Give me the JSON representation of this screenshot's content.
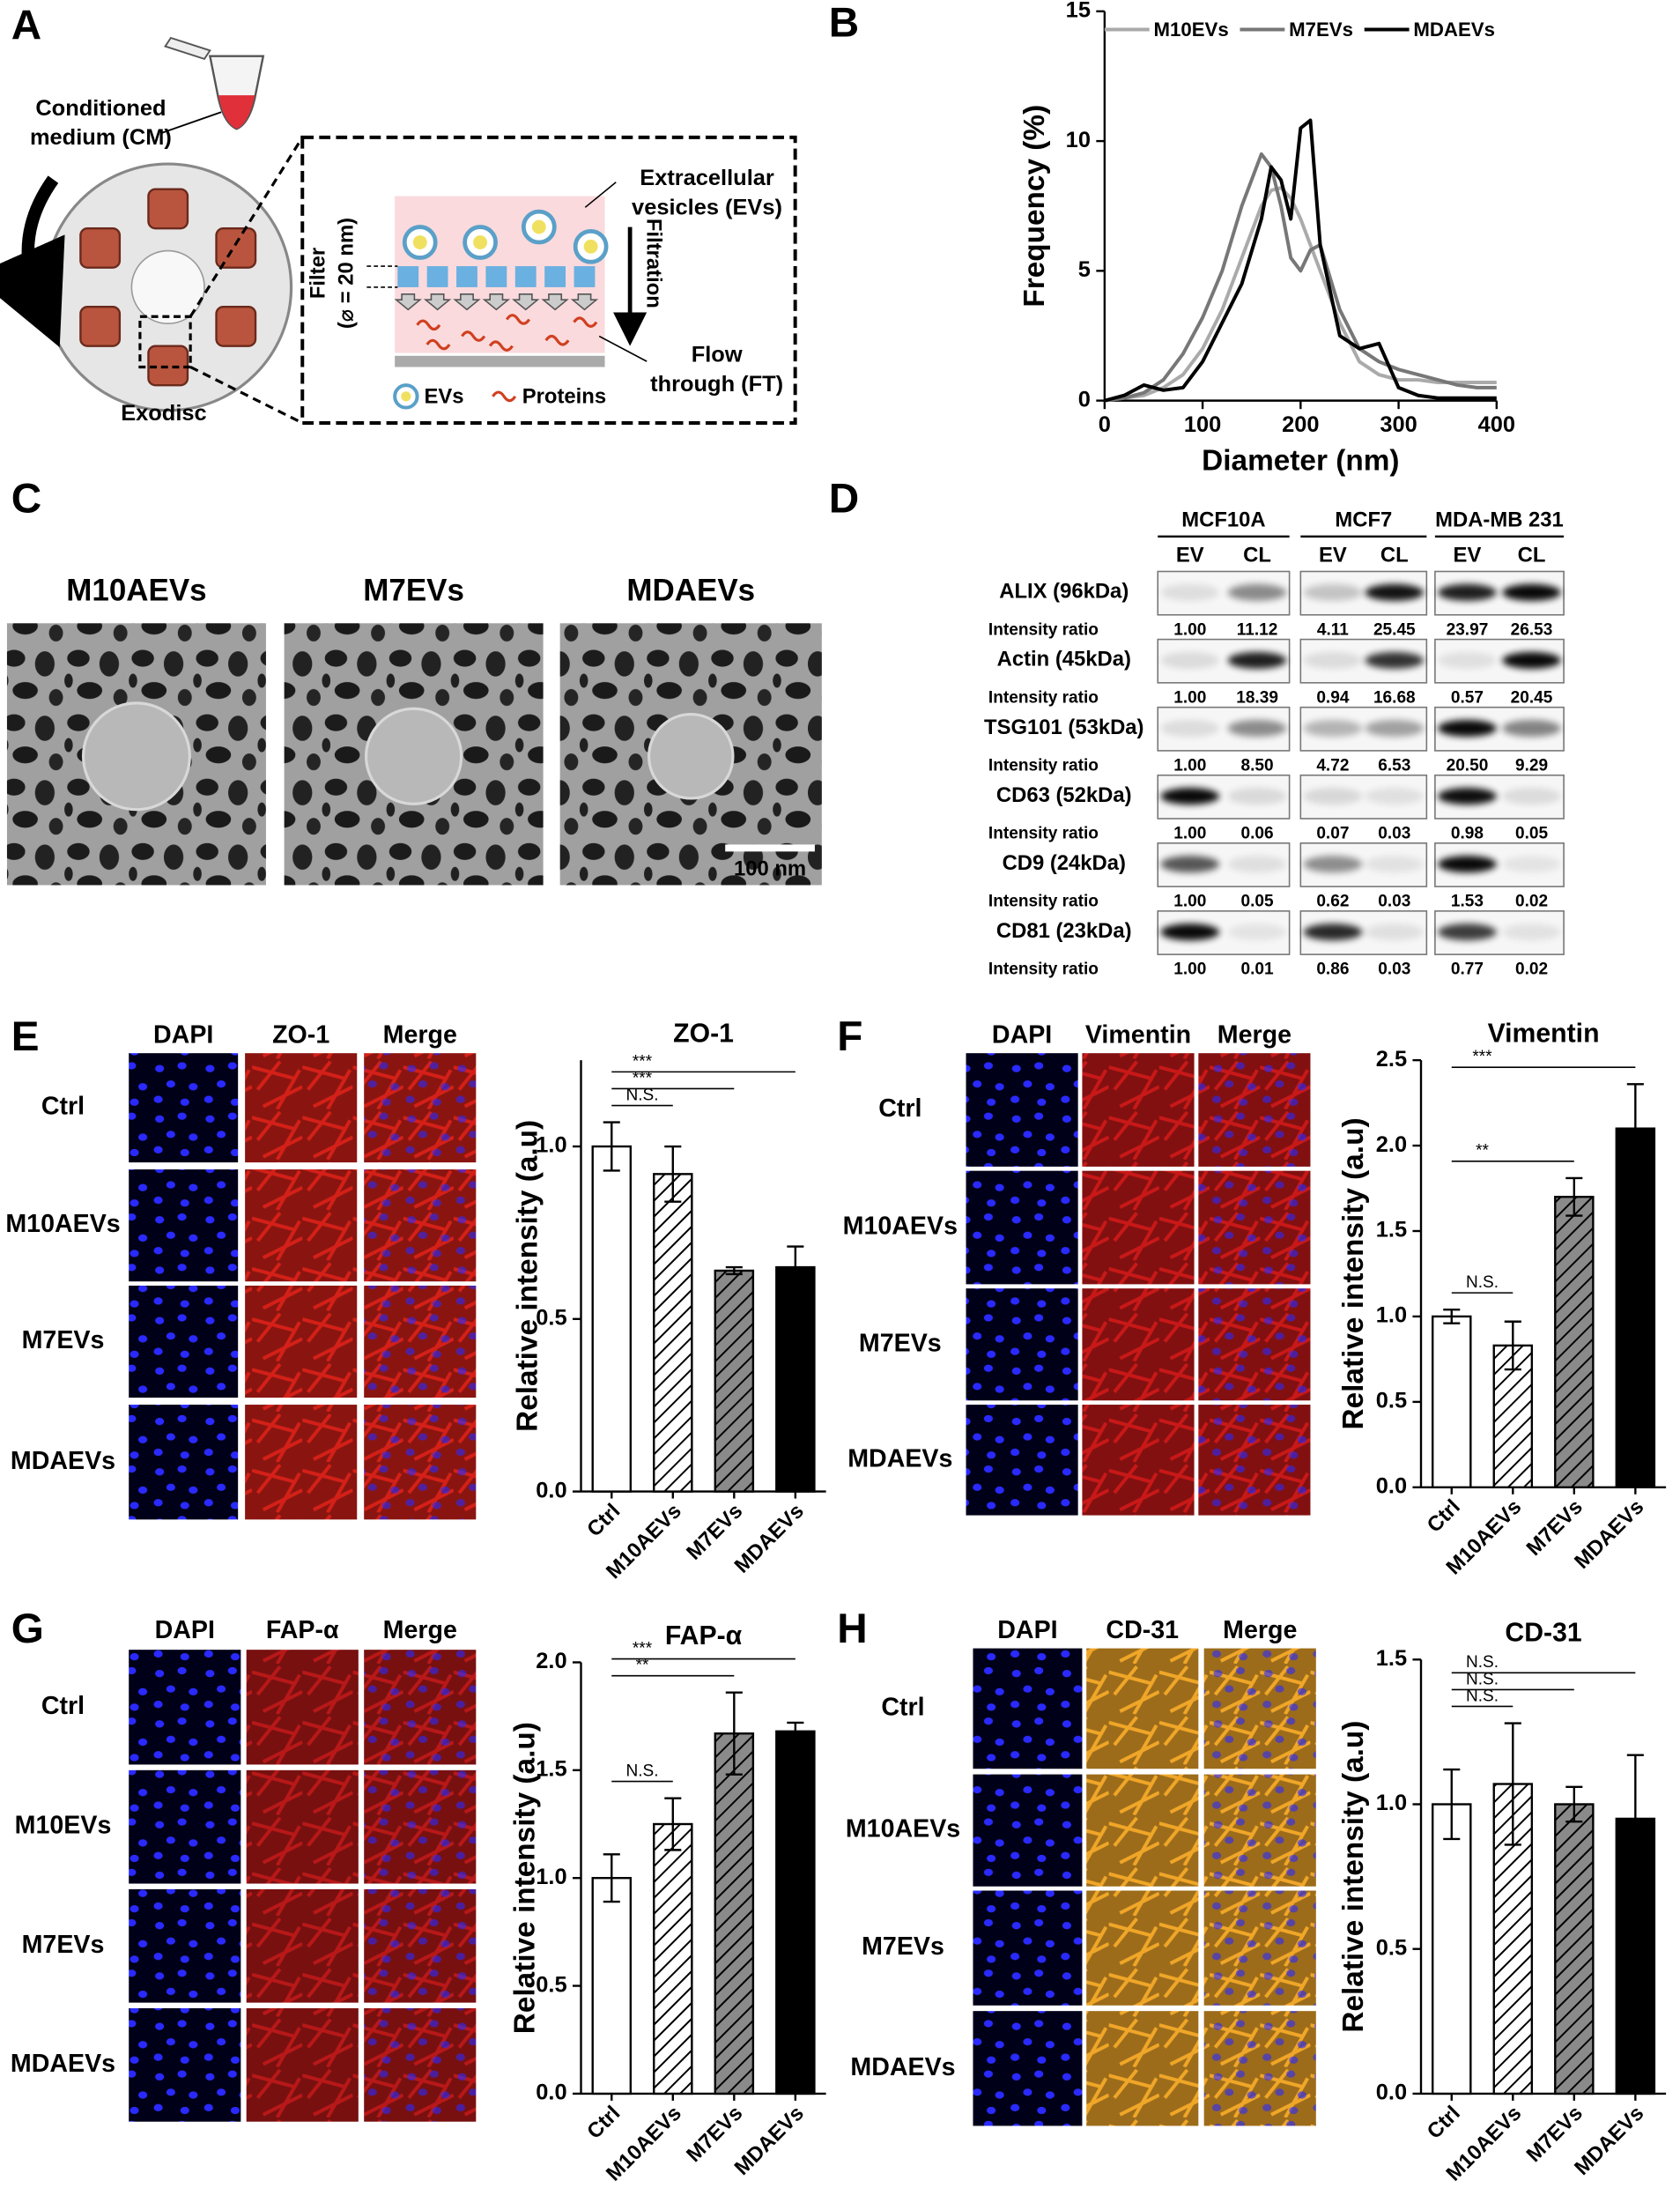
{
  "panel_labels": [
    "A",
    "B",
    "C",
    "D",
    "E",
    "F",
    "G",
    "H"
  ],
  "diagram_A": {
    "medium": [
      "Conditioned",
      "medium (CM)"
    ],
    "device": "Exodisc",
    "vesicles": [
      "Extracellular",
      "vesicles (EVs)"
    ],
    "filter": [
      "Filter",
      "(⌀ = 20 nm)"
    ],
    "filtration": "Filtration",
    "flow_through": [
      "Flow",
      "through (FT)"
    ],
    "legend": [
      "EVs",
      "Proteins"
    ]
  },
  "sem_C": {
    "titles": [
      "M10AEVs",
      "M7EVs",
      "MDAEVs"
    ],
    "scale_bar": "100 nm"
  },
  "western_D": {
    "groups": [
      "MCF10A",
      "MCF7",
      "MDA-MB 231"
    ],
    "lanes": [
      "EV",
      "CL"
    ],
    "ratio_label": "Intensity ratio",
    "rows": [
      {
        "protein": "ALIX (96kDa)",
        "ratios": [
          "1.00",
          "11.12",
          "4.11",
          "25.45",
          "23.97",
          "26.53"
        ]
      },
      {
        "protein": "Actin (45kDa)",
        "ratios": [
          "1.00",
          "18.39",
          "0.94",
          "16.68",
          "0.57",
          "20.45"
        ]
      },
      {
        "protein": "TSG101 (53kDa)",
        "ratios": [
          "1.00",
          "8.50",
          "4.72",
          "6.53",
          "20.50",
          "9.29"
        ]
      },
      {
        "protein": "CD63 (52kDa)",
        "ratios": [
          "1.00",
          "0.06",
          "0.07",
          "0.03",
          "0.98",
          "0.05"
        ]
      },
      {
        "protein": "CD9 (24kDa)",
        "ratios": [
          "1.00",
          "0.05",
          "0.62",
          "0.03",
          "1.53",
          "0.02"
        ]
      },
      {
        "protein": "CD81 (23kDa)",
        "ratios": [
          "1.00",
          "0.01",
          "0.86",
          "0.03",
          "0.77",
          "0.02"
        ]
      }
    ]
  },
  "micrographs": [
    {
      "columns": [
        "DAPI",
        "ZO-1",
        "Merge"
      ],
      "rows": [
        "Ctrl",
        "M10AEVs",
        "M7EVs",
        "MDAEVs"
      ],
      "colors": [
        "#2a2aff",
        "#d42018"
      ]
    },
    {
      "columns": [
        "DAPI",
        "Vimentin",
        "Merge"
      ],
      "rows": [
        "Ctrl",
        "M10AEVs",
        "M7EVs",
        "MDAEVs"
      ],
      "colors": [
        "#2a2aff",
        "#c81818"
      ]
    },
    {
      "columns": [
        "DAPI",
        "FAP-α",
        "Merge"
      ],
      "rows": [
        "Ctrl",
        "M10EVs",
        "M7EVs",
        "MDAEVs"
      ],
      "colors": [
        "#2a2aff",
        "#b81818"
      ]
    },
    {
      "columns": [
        "DAPI",
        "CD-31",
        "Merge"
      ],
      "rows": [
        "Ctrl",
        "M10AEVs",
        "M7EVs",
        "MDAEVs"
      ],
      "colors": [
        "#2a2aff",
        "#f0a628"
      ]
    }
  ],
  "chart_data": [
    {
      "type": "line",
      "xlabel": "Diameter (nm)",
      "ylabel": "Frequency (%)",
      "x": [
        0,
        20,
        40,
        60,
        80,
        100,
        120,
        140,
        160,
        170,
        180,
        190,
        200,
        210,
        220,
        240,
        260,
        280,
        300,
        320,
        340,
        360,
        380,
        400
      ],
      "series": [
        {
          "name": "M10EVs",
          "color": "#aaaaaa",
          "values": [
            0,
            0.1,
            0.2,
            0.5,
            1.0,
            2.0,
            3.5,
            5.5,
            7.5,
            8.1,
            8.2,
            7.8,
            7.0,
            6.0,
            5.0,
            3.0,
            1.5,
            1.0,
            0.8,
            0.8,
            0.7,
            0.7,
            0.7,
            0.7
          ]
        },
        {
          "name": "M7EVs",
          "color": "#777777",
          "values": [
            0,
            0.1,
            0.3,
            0.8,
            1.8,
            3.2,
            5.0,
            7.5,
            9.5,
            9.0,
            7.5,
            5.5,
            5.0,
            5.8,
            6.0,
            3.5,
            2.0,
            1.5,
            1.2,
            1.0,
            0.8,
            0.6,
            0.5,
            0.5
          ]
        },
        {
          "name": "MDAEVs",
          "color": "#000000",
          "values": [
            0,
            0.2,
            0.6,
            0.4,
            0.5,
            1.5,
            3.0,
            4.5,
            7.0,
            9.0,
            8.5,
            7.0,
            10.5,
            10.8,
            6.0,
            2.5,
            2.0,
            2.2,
            0.5,
            0.2,
            0.1,
            0.1,
            0.1,
            0.1
          ]
        }
      ],
      "xlim": [
        0,
        400
      ],
      "ylim": [
        0,
        15
      ],
      "xticks": [
        0,
        100,
        200,
        300,
        400
      ],
      "yticks": [
        0,
        5,
        10,
        15
      ],
      "legend": "top"
    },
    {
      "type": "bar",
      "title": "ZO-1",
      "ylabel": "Relative intensity (a.u)",
      "categories": [
        "Ctrl",
        "M10AEVs",
        "M7EVs",
        "MDAEVs"
      ],
      "values": [
        1.0,
        0.92,
        0.64,
        0.65
      ],
      "errors": [
        0.07,
        0.08,
        0.01,
        0.06
      ],
      "fills": [
        "white",
        "hatch-light",
        "hatch-dark",
        "black"
      ],
      "annotations": [
        "N.S.",
        "***",
        "***"
      ],
      "ylim": [
        0,
        1.25
      ],
      "yticks": [
        {
          "value": 0,
          "label": "0.0"
        },
        {
          "value": 0.5,
          "label": "0.5"
        },
        {
          "value": 1,
          "label": "1.0"
        }
      ]
    },
    {
      "type": "bar",
      "title": "Vimentin",
      "ylabel": "Relative intensity (a.u)",
      "categories": [
        "Ctrl",
        "M10AEVs",
        "M7EVs",
        "MDAEVs"
      ],
      "values": [
        1.0,
        0.83,
        1.7,
        2.1
      ],
      "errors": [
        0.04,
        0.14,
        0.11,
        0.26
      ],
      "fills": [
        "white",
        "hatch-light",
        "hatch-dark",
        "black"
      ],
      "annotations": [
        "N.S.",
        "**",
        "***"
      ],
      "ylim": [
        0,
        2.5
      ],
      "yticks": [
        {
          "value": 0,
          "label": "0.0"
        },
        {
          "value": 0.5,
          "label": "0.5"
        },
        {
          "value": 1,
          "label": "1.0"
        },
        {
          "value": 1.5,
          "label": "1.5"
        },
        {
          "value": 2,
          "label": "2.0"
        },
        {
          "value": 2.5,
          "label": "2.5"
        }
      ]
    },
    {
      "type": "bar",
      "title": "FAP-α",
      "ylabel": "Relative intensity (a.u)",
      "categories": [
        "Ctrl",
        "M10AEVs",
        "M7EVs",
        "MDAEVs"
      ],
      "values": [
        1.0,
        1.25,
        1.67,
        1.68
      ],
      "errors": [
        0.11,
        0.12,
        0.19,
        0.04
      ],
      "fills": [
        "white",
        "hatch-light",
        "hatch-dark",
        "black"
      ],
      "annotations": [
        "N.S.",
        "**",
        "***"
      ],
      "ylim": [
        0,
        2.0
      ],
      "yticks": [
        {
          "value": 0,
          "label": "0.0"
        },
        {
          "value": 0.5,
          "label": "0.5"
        },
        {
          "value": 1,
          "label": "1.0"
        },
        {
          "value": 1.5,
          "label": "1.5"
        },
        {
          "value": 2,
          "label": "2.0"
        }
      ]
    },
    {
      "type": "bar",
      "title": "CD-31",
      "ylabel": "Relative intensity (a.u)",
      "categories": [
        "Ctrl",
        "M10AEVs",
        "M7EVs",
        "MDAEVs"
      ],
      "values": [
        1.0,
        1.07,
        1.0,
        0.95
      ],
      "errors": [
        0.12,
        0.21,
        0.06,
        0.22
      ],
      "fills": [
        "white",
        "hatch-light",
        "hatch-dark",
        "black"
      ],
      "annotations": [
        "N.S.",
        "N.S.",
        "N.S."
      ],
      "ylim": [
        0,
        1.5
      ],
      "yticks": [
        {
          "value": 0,
          "label": "0.0"
        },
        {
          "value": 0.5,
          "label": "0.5"
        },
        {
          "value": 1,
          "label": "1.0"
        },
        {
          "value": 1.5,
          "label": "1.5"
        }
      ]
    }
  ]
}
